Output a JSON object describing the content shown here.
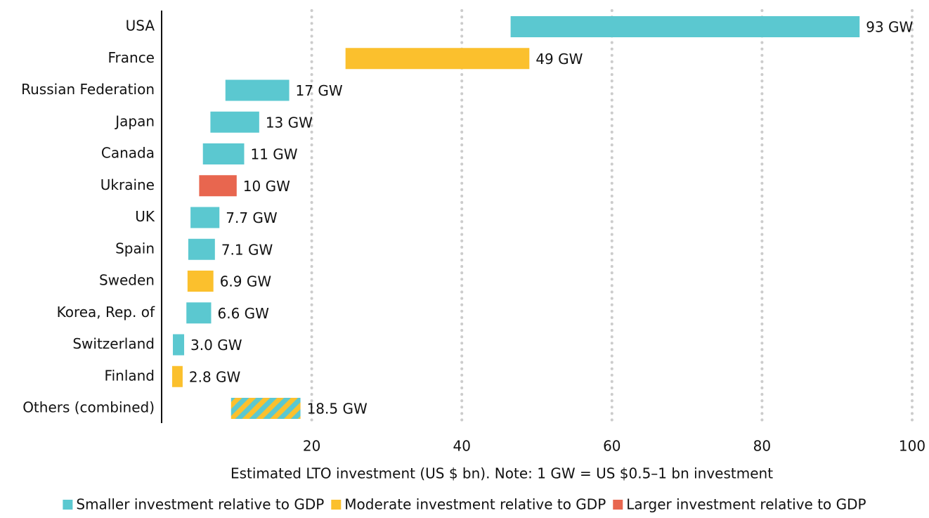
{
  "chart_data": {
    "type": "floating-bar",
    "categories": [
      "USA",
      "France",
      "Russian Federation",
      "Japan",
      "Canada",
      "Ukraine",
      "UK",
      "Spain",
      "Sweden",
      "Korea, Rep. of",
      "Switzerland",
      "Finland",
      "Others (combined)"
    ],
    "low": [
      46.5,
      24.5,
      8.5,
      6.5,
      5.5,
      5,
      3.85,
      3.55,
      3.45,
      3.3,
      1.5,
      1.4,
      9.25
    ],
    "high": [
      93,
      49,
      17,
      13,
      11,
      10,
      7.7,
      7.1,
      6.9,
      6.6,
      3.0,
      2.8,
      18.5
    ],
    "value_labels": [
      "93 GW",
      "49 GW",
      "17 GW",
      "13 GW",
      "11 GW",
      "10 GW",
      "7.7 GW",
      "7.1 GW",
      "6.9 GW",
      "6.6 GW",
      "3.0 GW",
      "2.8 GW",
      "18.5 GW"
    ],
    "colors": [
      "#5bc8d0",
      "#fbc02d",
      "#5bc8d0",
      "#5bc8d0",
      "#5bc8d0",
      "#e8664f",
      "#5bc8d0",
      "#5bc8d0",
      "#fbc02d",
      "#5bc8d0",
      "#5bc8d0",
      "#fbc02d",
      [
        "#5bc8d0",
        "#fbc02d"
      ]
    ],
    "xlim": [
      0,
      100
    ],
    "xticks": [
      20,
      40,
      60,
      80,
      100
    ],
    "grid": true,
    "xlabel": "Estimated LTO investment (US $ bn).  Note: 1 GW = US $0.5–1 bn investment",
    "legend": [
      {
        "name": "Smaller investment relative to GDP",
        "color": "#5bc8d0"
      },
      {
        "name": "Moderate investment relative to GDP",
        "color": "#fbc02d"
      },
      {
        "name": "Larger investment relative to GDP",
        "color": "#e8664f"
      }
    ]
  }
}
